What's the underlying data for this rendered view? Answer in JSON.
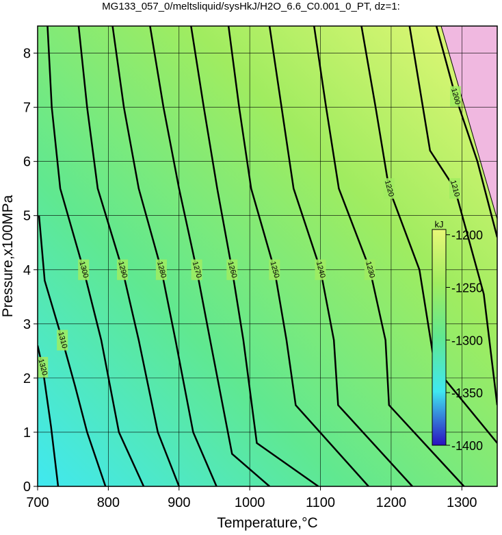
{
  "chart_data": {
    "type": "contour",
    "title": "MG133_057_0/meltsliquid/sysHkJ/H2O_6.6_C0.001_0_PT, dz=1:",
    "xlabel": "Temperature,°C",
    "ylabel": "Pressure,x100MPa",
    "xlim": [
      700,
      1350
    ],
    "ylim": [
      0,
      8.5
    ],
    "xticks": [
      700,
      800,
      900,
      1000,
      1100,
      1200,
      1300
    ],
    "yticks": [
      0,
      1,
      2,
      3,
      4,
      5,
      6,
      7,
      8
    ],
    "grid": true,
    "line_color": "#000000",
    "contours": [
      {
        "level": -1320,
        "label": "1320",
        "x": [
          729,
          719,
          707,
          700
        ],
        "y": [
          0,
          1.1,
          2.2,
          2.6
        ]
      },
      {
        "level": -1310,
        "label": "1310",
        "x": [
          796,
          770,
          753,
          735,
          710,
          702
        ],
        "y": [
          0,
          1,
          1.85,
          2.7,
          3.8,
          5
        ]
      },
      {
        "level": -1300,
        "label": "1300",
        "x": [
          850,
          815,
          790,
          765,
          732,
          720,
          714
        ],
        "y": [
          0,
          1,
          2.7,
          4,
          5.5,
          7,
          8.5
        ]
      },
      {
        "level": -1290,
        "label": "1290",
        "x": [
          900,
          870,
          843,
          820,
          785,
          770,
          758
        ],
        "y": [
          0,
          1,
          2.7,
          4,
          5.5,
          7,
          8.5
        ]
      },
      {
        "level": -1280,
        "label": "1280",
        "x": [
          953,
          920,
          895,
          875,
          843,
          822,
          806
        ],
        "y": [
          0,
          1,
          2.7,
          4,
          5.5,
          7,
          8.5
        ]
      },
      {
        "level": -1270,
        "label": "1270",
        "x": [
          1028,
          975,
          944,
          925,
          900,
          878,
          859
        ],
        "y": [
          0,
          0.6,
          2.7,
          4,
          5.5,
          7,
          8.5
        ]
      },
      {
        "level": -1260,
        "label": "1260",
        "x": [
          1097,
          1010,
          991,
          975,
          954,
          935,
          917
        ],
        "y": [
          0,
          0.8,
          2.7,
          4,
          5.5,
          7,
          8.5
        ]
      },
      {
        "level": -1250,
        "label": "1250",
        "x": [
          1168,
          1065,
          1052,
          1035,
          1002,
          985,
          970
        ],
        "y": [
          0,
          1.5,
          2.7,
          4,
          5.5,
          7,
          8.5
        ]
      },
      {
        "level": -1240,
        "label": "1240",
        "x": [
          1230,
          1125,
          1119,
          1100,
          1062,
          1045,
          1028
        ],
        "y": [
          0,
          1.5,
          2.7,
          4,
          5.5,
          7,
          8.5
        ]
      },
      {
        "level": -1230,
        "label": "1230",
        "x": [
          1303,
          1197,
          1192,
          1170,
          1126,
          1108,
          1091
        ],
        "y": [
          0,
          1.5,
          2.7,
          4,
          5.5,
          7,
          8.5
        ]
      },
      {
        "level": -1220,
        "label": "1220",
        "x": [
          1350,
          1262,
          1240,
          1197,
          1178,
          1158
        ],
        "y": [
          0.8,
          2.2,
          4,
          5.5,
          7,
          8.5
        ]
      },
      {
        "level": -1210,
        "label": "1210",
        "x": [
          1350,
          1331,
          1290,
          1255,
          1226
        ],
        "y": [
          1.5,
          3.55,
          5.5,
          6.2,
          8.5
        ]
      },
      {
        "level": -1200,
        "label": "1200",
        "x": [
          1350,
          1322,
          1291,
          1264
        ],
        "y": [
          4.6,
          6,
          7.2,
          8.5
        ]
      }
    ],
    "colorbar": {
      "label": "kJ",
      "lim": [
        -1400,
        -1195
      ],
      "ticks": [
        -1200,
        -1250,
        -1300,
        -1350,
        -1400
      ],
      "colors": [
        "#2a10c0",
        "#40e8f0",
        "#60e890",
        "#a0ec60",
        "#e8f878"
      ]
    }
  }
}
